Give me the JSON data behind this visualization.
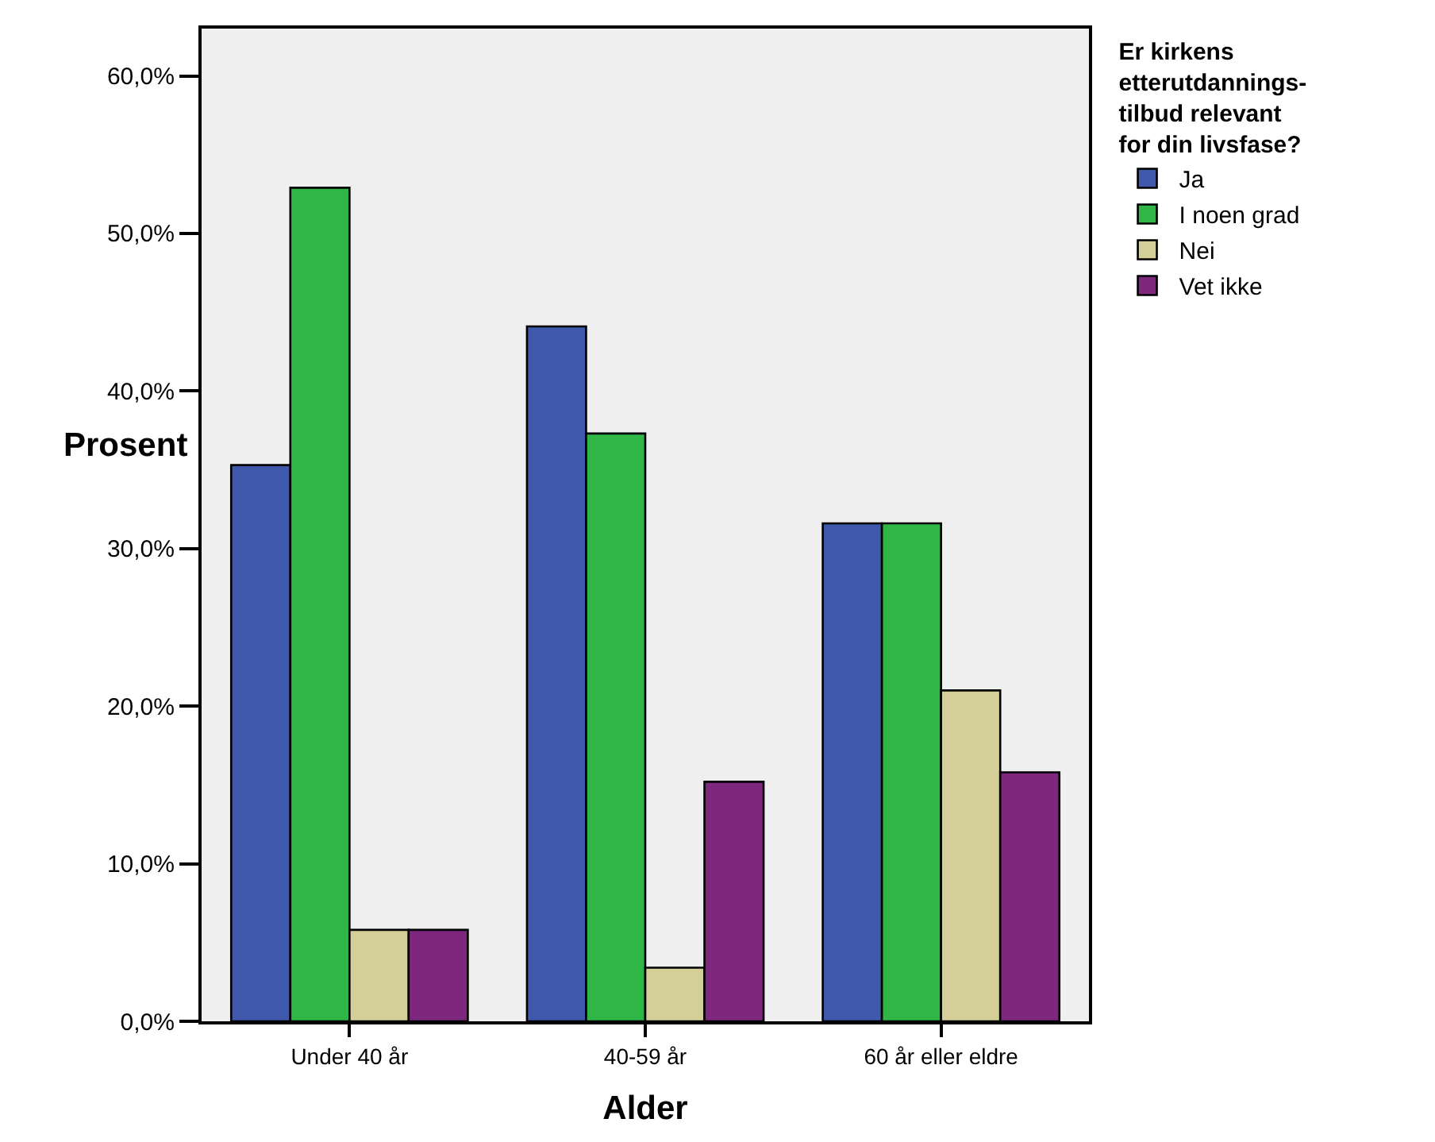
{
  "chart_data": {
    "type": "bar",
    "xlabel": "Alder",
    "ylabel": "Prosent",
    "legend_title": "Er kirkens\netterutdannings-\ntilbud relevant\nfor din livsfase?",
    "categories": [
      "Under 40 år",
      "40-59 år",
      "60 år eller eldre"
    ],
    "series": [
      {
        "name": "Ja",
        "color": "#3f58ab",
        "values": [
          35.3,
          44.1,
          31.6
        ]
      },
      {
        "name": "I noen grad",
        "color": "#30b647",
        "values": [
          52.9,
          37.3,
          31.6
        ]
      },
      {
        "name": "Nei",
        "color": "#d4cf98",
        "values": [
          5.8,
          3.4,
          21.0
        ]
      },
      {
        "name": "Vet ikke",
        "color": "#7d287d",
        "values": [
          5.8,
          15.2,
          15.8
        ]
      }
    ],
    "ylim": [
      0,
      63
    ],
    "yticks": [
      {
        "value": 0,
        "label": "0,0%"
      },
      {
        "value": 10,
        "label": "10,0%"
      },
      {
        "value": 20,
        "label": "20,0%"
      },
      {
        "value": 30,
        "label": "30,0%"
      },
      {
        "value": 40,
        "label": "40,0%"
      },
      {
        "value": 50,
        "label": "50,0%"
      },
      {
        "value": 60,
        "label": "60,0%"
      }
    ],
    "grid": false,
    "legend": "top right"
  }
}
